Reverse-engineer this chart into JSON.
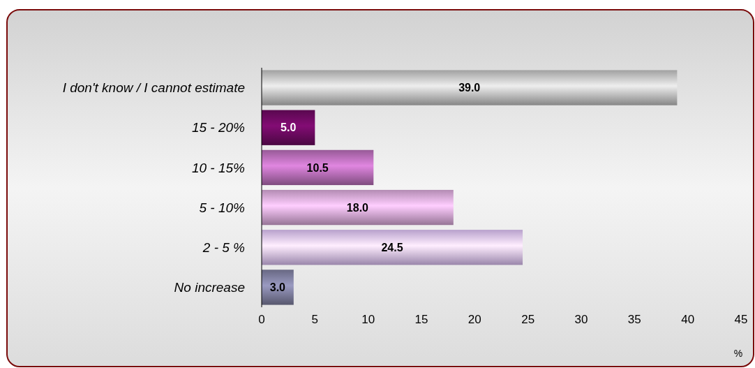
{
  "chart_data": {
    "type": "bar",
    "orientation": "horizontal",
    "categories": [
      "I don't know / I cannot estimate",
      "15 - 20%",
      "10 - 15%",
      "5 - 10%",
      "2 - 5 %",
      "No increase"
    ],
    "values": [
      39.0,
      5.0,
      10.5,
      18.0,
      24.5,
      3.0
    ],
    "colors": [
      "#c0c0c0",
      "#6a0a5e",
      "#b56cb5",
      "#d6a6d6",
      "#dcc0f4",
      "#7c7c9c"
    ],
    "value_labels": [
      "39.0",
      "5.0",
      "10.5",
      "18.0",
      "24.5",
      "3.0"
    ],
    "xlim": [
      0,
      45
    ],
    "xticks": [
      0,
      5,
      10,
      15,
      20,
      25,
      30,
      35,
      40,
      45
    ],
    "xlabel": "%",
    "grid": false
  }
}
